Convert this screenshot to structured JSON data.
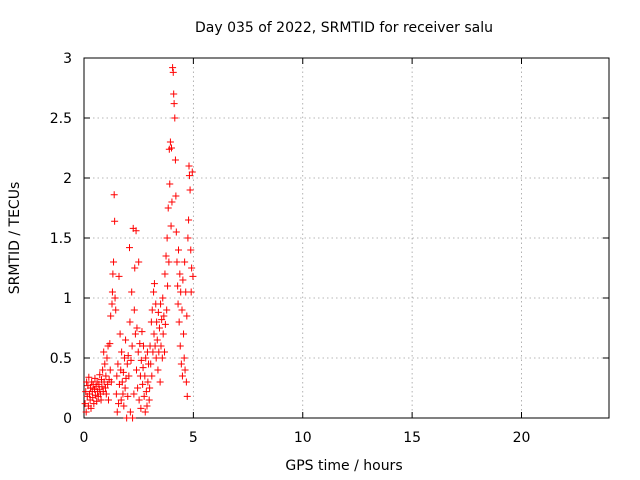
{
  "chart_data": {
    "type": "scatter",
    "title": "Day 035 of 2022, SRMTID for receiver salu",
    "xlabel": "GPS time / hours",
    "ylabel": "SRMTID / TECUs",
    "xlim": [
      0,
      24
    ],
    "ylim": [
      0,
      3
    ],
    "xticks": [
      0,
      5,
      10,
      15,
      20
    ],
    "xtick_labels": [
      "0",
      "5",
      "10",
      "15",
      "20"
    ],
    "yticks": [
      0,
      0.5,
      1,
      1.5,
      2,
      2.5,
      3
    ],
    "ytick_labels": [
      "0",
      "0.5",
      "1",
      "1.5",
      "2",
      "2.5",
      "3"
    ],
    "grid": true,
    "marker": "+",
    "marker_color": "#ff0000",
    "series": [
      {
        "name": "SRMTID",
        "points": [
          [
            0.05,
            0.12
          ],
          [
            0.08,
            0.22
          ],
          [
            0.1,
            0.05
          ],
          [
            0.12,
            0.3
          ],
          [
            0.15,
            0.18
          ],
          [
            0.18,
            0.27
          ],
          [
            0.2,
            0.1
          ],
          [
            0.22,
            0.34
          ],
          [
            0.25,
            0.2
          ],
          [
            0.28,
            0.15
          ],
          [
            0.3,
            0.25
          ],
          [
            0.32,
            0.08
          ],
          [
            0.35,
            0.3
          ],
          [
            0.38,
            0.22
          ],
          [
            0.4,
            0.17
          ],
          [
            0.42,
            0.28
          ],
          [
            0.45,
            0.12
          ],
          [
            0.48,
            0.24
          ],
          [
            0.5,
            0.33
          ],
          [
            0.52,
            0.19
          ],
          [
            0.55,
            0.26
          ],
          [
            0.58,
            0.14
          ],
          [
            0.6,
            0.3
          ],
          [
            0.62,
            0.22
          ],
          [
            0.65,
            0.18
          ],
          [
            0.68,
            0.28
          ],
          [
            0.7,
            0.24
          ],
          [
            0.72,
            0.36
          ],
          [
            0.75,
            0.2
          ],
          [
            0.78,
            0.15
          ],
          [
            0.8,
            0.32
          ],
          [
            0.82,
            0.26
          ],
          [
            0.85,
            0.4
          ],
          [
            0.88,
            0.22
          ],
          [
            0.9,
            0.55
          ],
          [
            0.92,
            0.3
          ],
          [
            0.95,
            0.45
          ],
          [
            0.98,
            0.25
          ],
          [
            1.0,
            0.35
          ],
          [
            1.02,
            0.2
          ],
          [
            1.05,
            0.5
          ],
          [
            1.08,
            0.28
          ],
          [
            1.1,
            0.6
          ],
          [
            1.12,
            0.15
          ],
          [
            1.15,
            0.32
          ],
          [
            1.18,
            0.62
          ],
          [
            1.2,
            0.4
          ],
          [
            1.22,
            0.85
          ],
          [
            1.25,
            0.3
          ],
          [
            1.28,
            0.95
          ],
          [
            1.3,
            1.05
          ],
          [
            1.32,
            1.2
          ],
          [
            1.35,
            1.3
          ],
          [
            1.38,
            1.86
          ],
          [
            1.4,
            1.64
          ],
          [
            1.42,
            1.0
          ],
          [
            1.45,
            0.9
          ],
          [
            1.48,
            0.2
          ],
          [
            1.5,
            0.35
          ],
          [
            1.52,
            0.05
          ],
          [
            1.55,
            0.45
          ],
          [
            1.58,
            0.12
          ],
          [
            1.6,
            1.18
          ],
          [
            1.62,
            0.28
          ],
          [
            1.65,
            0.7
          ],
          [
            1.68,
            0.4
          ],
          [
            1.7,
            0.15
          ],
          [
            1.72,
            0.55
          ],
          [
            1.75,
            0.3
          ],
          [
            1.78,
            0.2
          ],
          [
            1.8,
            0.38
          ],
          [
            1.82,
            0.1
          ],
          [
            1.85,
            0.5
          ],
          [
            1.88,
            0.25
          ],
          [
            1.9,
            0.65
          ],
          [
            1.92,
            0.33
          ],
          [
            1.95,
            0.0
          ],
          [
            1.98,
            0.45
          ],
          [
            2.0,
            0.18
          ],
          [
            2.02,
            0.52
          ],
          [
            2.05,
            0.35
          ],
          [
            2.08,
            1.42
          ],
          [
            2.1,
            0.8
          ],
          [
            2.12,
            0.05
          ],
          [
            2.15,
            0.48
          ],
          [
            2.18,
            1.05
          ],
          [
            2.2,
            0.6
          ],
          [
            2.22,
            0.0
          ],
          [
            2.25,
            1.58
          ],
          [
            2.28,
            0.2
          ],
          [
            2.3,
            0.9
          ],
          [
            2.32,
            1.25
          ],
          [
            2.35,
            0.7
          ],
          [
            2.38,
            1.56
          ],
          [
            2.4,
            0.4
          ],
          [
            2.42,
            0.75
          ],
          [
            2.45,
            0.25
          ],
          [
            2.48,
            0.55
          ],
          [
            2.5,
            1.3
          ],
          [
            2.52,
            0.15
          ],
          [
            2.55,
            0.62
          ],
          [
            2.58,
            0.35
          ],
          [
            2.6,
            0.08
          ],
          [
            2.62,
            0.48
          ],
          [
            2.65,
            0.72
          ],
          [
            2.68,
            0.28
          ],
          [
            2.7,
            0.42
          ],
          [
            2.72,
            0.6
          ],
          [
            2.75,
            0.18
          ],
          [
            2.78,
            0.35
          ],
          [
            2.8,
            0.05
          ],
          [
            2.82,
            0.5
          ],
          [
            2.85,
            0.22
          ],
          [
            2.88,
            0.1
          ],
          [
            2.9,
            0.55
          ],
          [
            2.92,
            0.3
          ],
          [
            2.95,
            0.45
          ],
          [
            2.98,
            0.15
          ],
          [
            3.0,
            0.25
          ],
          [
            3.02,
            0.6
          ],
          [
            3.05,
            0.45
          ],
          [
            3.08,
            0.8
          ],
          [
            3.1,
            0.35
          ],
          [
            3.12,
            0.9
          ],
          [
            3.15,
            0.55
          ],
          [
            3.18,
            1.05
          ],
          [
            3.2,
            0.7
          ],
          [
            3.22,
            1.12
          ],
          [
            3.25,
            0.6
          ],
          [
            3.28,
            0.95
          ],
          [
            3.3,
            0.5
          ],
          [
            3.32,
            0.8
          ],
          [
            3.35,
            0.65
          ],
          [
            3.38,
            0.4
          ],
          [
            3.4,
            0.88
          ],
          [
            3.42,
            0.55
          ],
          [
            3.45,
            0.75
          ],
          [
            3.48,
            0.3
          ],
          [
            3.5,
            0.95
          ],
          [
            3.52,
            0.6
          ],
          [
            3.55,
            0.82
          ],
          [
            3.58,
            0.5
          ],
          [
            3.6,
            1.0
          ],
          [
            3.62,
            0.7
          ],
          [
            3.65,
            0.85
          ],
          [
            3.68,
            0.55
          ],
          [
            3.7,
            1.2
          ],
          [
            3.72,
            0.78
          ],
          [
            3.75,
            1.35
          ],
          [
            3.78,
            0.9
          ],
          [
            3.8,
            1.5
          ],
          [
            3.82,
            1.1
          ],
          [
            3.85,
            1.75
          ],
          [
            3.88,
            1.3
          ],
          [
            3.9,
            2.24
          ],
          [
            3.92,
            1.95
          ],
          [
            3.95,
            2.3
          ],
          [
            3.98,
            1.6
          ],
          [
            4.0,
            2.25
          ],
          [
            4.02,
            1.8
          ],
          [
            4.05,
            2.92
          ],
          [
            4.08,
            2.88
          ],
          [
            4.1,
            2.7
          ],
          [
            4.12,
            2.62
          ],
          [
            4.15,
            2.5
          ],
          [
            4.18,
            2.15
          ],
          [
            4.2,
            1.85
          ],
          [
            4.22,
            1.55
          ],
          [
            4.25,
            1.3
          ],
          [
            4.28,
            1.1
          ],
          [
            4.3,
            0.95
          ],
          [
            4.32,
            1.4
          ],
          [
            4.35,
            0.8
          ],
          [
            4.38,
            1.2
          ],
          [
            4.4,
            0.6
          ],
          [
            4.42,
            1.05
          ],
          [
            4.45,
            0.45
          ],
          [
            4.48,
            0.9
          ],
          [
            4.5,
            0.35
          ],
          [
            4.52,
            1.15
          ],
          [
            4.55,
            0.7
          ],
          [
            4.58,
            0.5
          ],
          [
            4.6,
            1.3
          ],
          [
            4.62,
            0.4
          ],
          [
            4.65,
            1.05
          ],
          [
            4.68,
            0.3
          ],
          [
            4.7,
            0.85
          ],
          [
            4.72,
            0.18
          ],
          [
            4.75,
            1.5
          ],
          [
            4.78,
            1.65
          ],
          [
            4.8,
            2.1
          ],
          [
            4.82,
            2.02
          ],
          [
            4.85,
            1.9
          ],
          [
            4.88,
            1.4
          ],
          [
            4.9,
            1.05
          ],
          [
            4.92,
            1.25
          ],
          [
            4.95,
            2.05
          ],
          [
            4.98,
            1.18
          ]
        ]
      }
    ]
  }
}
